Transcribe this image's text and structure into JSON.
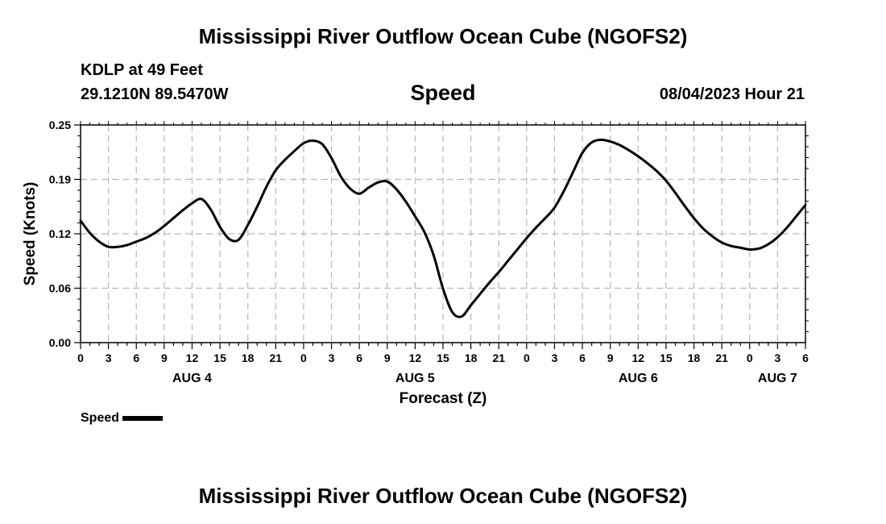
{
  "header": {
    "title": "Mississippi River Outflow Ocean Cube (NGOFS2)",
    "station": "KDLP at 49 Feet",
    "coords": "29.1210N  89.5470W",
    "subtitle": "Speed",
    "datetime": "08/04/2023 Hour 21"
  },
  "footer": {
    "title": "Mississippi River Outflow Ocean Cube (NGOFS2)"
  },
  "legend": {
    "label": "Speed",
    "color": "#000000"
  },
  "chart_data": {
    "type": "line",
    "title": "Speed",
    "xlabel": "Forecast (Z)",
    "ylabel": "Speed (Knots)",
    "ylim": [
      0,
      0.25
    ],
    "xlim": [
      0,
      78
    ],
    "x_unit": "hours since AUG 4 00Z",
    "grid": true,
    "legend_position": "bottom-left",
    "y_ticks": [
      "0.00",
      "0.06",
      "0.12",
      "0.19",
      "0.25"
    ],
    "x_tick_labels": [
      "0",
      "3",
      "6",
      "9",
      "12",
      "15",
      "18",
      "21",
      "0",
      "3",
      "6",
      "9",
      "12",
      "15",
      "18",
      "21",
      "0",
      "3",
      "6",
      "9",
      "12",
      "15",
      "18",
      "21",
      "0",
      "3",
      "6"
    ],
    "day_labels": [
      {
        "hour": 12,
        "label": "AUG 4"
      },
      {
        "hour": 36,
        "label": "AUG 5"
      },
      {
        "hour": 60,
        "label": "AUG 6"
      },
      {
        "hour": 75,
        "label": "AUG 7"
      }
    ],
    "series": [
      {
        "name": "Speed",
        "color": "#000000",
        "x": [
          0,
          1,
          2,
          3,
          4,
          5,
          6,
          7,
          8,
          9,
          10,
          11,
          12,
          13,
          14,
          15,
          16,
          17,
          18,
          19,
          20,
          21,
          22,
          23,
          24,
          25,
          26,
          27,
          28,
          29,
          30,
          31,
          32,
          33,
          34,
          35,
          36,
          37,
          38,
          39,
          40,
          41,
          42,
          43,
          44,
          45,
          46,
          47,
          48,
          49,
          50,
          51,
          52,
          53,
          54,
          55,
          56,
          57,
          58,
          59,
          60,
          61,
          62,
          63,
          64,
          65,
          66,
          67,
          68,
          69,
          70,
          71,
          72,
          73,
          74,
          75,
          76,
          77,
          78
        ],
        "values": [
          0.14,
          0.126,
          0.116,
          0.11,
          0.11,
          0.112,
          0.116,
          0.12,
          0.126,
          0.134,
          0.143,
          0.152,
          0.16,
          0.165,
          0.153,
          0.133,
          0.119,
          0.118,
          0.135,
          0.156,
          0.179,
          0.198,
          0.21,
          0.22,
          0.229,
          0.232,
          0.228,
          0.212,
          0.191,
          0.177,
          0.171,
          0.178,
          0.184,
          0.185,
          0.176,
          0.162,
          0.145,
          0.127,
          0.1,
          0.062,
          0.035,
          0.03,
          0.043,
          0.056,
          0.069,
          0.081,
          0.094,
          0.107,
          0.12,
          0.132,
          0.143,
          0.155,
          0.174,
          0.196,
          0.218,
          0.23,
          0.233,
          0.231,
          0.227,
          0.221,
          0.214,
          0.206,
          0.197,
          0.186,
          0.172,
          0.157,
          0.143,
          0.131,
          0.122,
          0.115,
          0.111,
          0.109,
          0.107,
          0.108,
          0.113,
          0.121,
          0.132,
          0.145,
          0.158
        ]
      }
    ]
  }
}
